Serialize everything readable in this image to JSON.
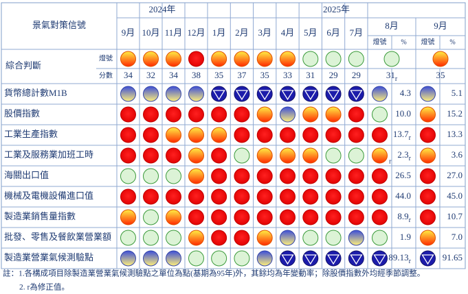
{
  "header": {
    "title": "景氣對策信號",
    "years": [
      "2024年",
      "2025年"
    ],
    "months": [
      "9月",
      "10月",
      "11月",
      "12月",
      "1月",
      "2月",
      "3月",
      "4月",
      "5月",
      "6月",
      "7月",
      "8月",
      "9月"
    ],
    "sub_labels": [
      "燈號",
      "%"
    ]
  },
  "composite": {
    "label": "綜合判斷",
    "signal_label": "燈號",
    "score_label": "分數",
    "signals": [
      "yellow-red",
      "yellow-red",
      "yellow-red",
      "red",
      "yellow-red",
      "yellow-red",
      "yellow-red",
      "yellow-red",
      "green",
      "green",
      "green",
      "green",
      "yellow-red"
    ],
    "scores": [
      {
        "text": "34"
      },
      {
        "text": "32"
      },
      {
        "text": "34"
      },
      {
        "text": "38"
      },
      {
        "text": "35"
      },
      {
        "text": "37"
      },
      {
        "text": "35"
      },
      {
        "text": "33"
      },
      {
        "text": "31"
      },
      {
        "text": "29"
      },
      {
        "text": "29"
      },
      {
        "text": "31",
        "note": "r"
      },
      {
        "text": "35"
      }
    ]
  },
  "rows": [
    {
      "label": "貨幣總計數M1B",
      "signals": [
        "yellow-blue",
        "yellow-blue",
        "yellow-blue",
        "yellow-blue",
        "blue",
        "blue",
        "blue",
        "blue",
        "blue",
        "blue",
        "blue",
        "yellow-blue",
        "yellow-blue"
      ],
      "aug_pct": {
        "text": "4.3"
      },
      "sep_pct": {
        "text": "5.1"
      }
    },
    {
      "label": "股價指數",
      "signals": [
        "red",
        "red",
        "red",
        "red",
        "red",
        "red",
        "yellow-red",
        "yellow-blue",
        "yellow-red",
        "yellow-red",
        "red",
        "green",
        "yellow-red"
      ],
      "aug_pct": {
        "text": "10.0"
      },
      "sep_pct": {
        "text": "15.2"
      }
    },
    {
      "label": "工業生產指數",
      "signals": [
        "red",
        "red",
        "yellow-red",
        "yellow-red",
        "yellow-red",
        "red",
        "red",
        "red",
        "red",
        "red",
        "red",
        "red",
        "red"
      ],
      "aug_pct": {
        "text": "13.7",
        "note": "r"
      },
      "sep_pct": {
        "text": "13.3"
      }
    },
    {
      "label": "工業及服務業加班工時",
      "signals": [
        "red",
        "red",
        "red",
        "yellow-red",
        "red",
        "green",
        "yellow-red",
        "yellow-red",
        "yellow-red",
        "green",
        "green",
        "yellow-red",
        "yellow-red"
      ],
      "aug_signal_note": "r",
      "aug_pct": {
        "text": "2.3",
        "note": "r"
      },
      "sep_pct": {
        "text": "3.6"
      }
    },
    {
      "label": "海關出口值",
      "signals": [
        "green",
        "green",
        "green",
        "yellow-red",
        "red",
        "red",
        "red",
        "red",
        "red",
        "red",
        "red",
        "red",
        "red"
      ],
      "aug_pct": {
        "text": "26.5"
      },
      "sep_pct": {
        "text": "27.0"
      }
    },
    {
      "label": "機械及電機設備進口值",
      "signals": [
        "red",
        "red",
        "red",
        "red",
        "red",
        "red",
        "red",
        "red",
        "red",
        "red",
        "red",
        "red",
        "red"
      ],
      "aug_pct": {
        "text": "44.0"
      },
      "sep_pct": {
        "text": "45.0"
      }
    },
    {
      "label": "製造業銷售量指數",
      "signals": [
        "yellow-red",
        "green",
        "yellow-red",
        "red",
        "red",
        "red",
        "red",
        "red",
        "red",
        "red",
        "red",
        "red",
        "red"
      ],
      "aug_pct": {
        "text": "8.9",
        "note": "r"
      },
      "sep_pct": {
        "text": "10.7"
      }
    },
    {
      "label": "批發、零售及餐飲業營業額",
      "signals": [
        "green",
        "green",
        "green",
        "yellow-red",
        "red",
        "red",
        "yellow-red",
        "yellow-blue",
        "green",
        "green",
        "yellow-blue",
        "green",
        "yellow-red"
      ],
      "aug_pct": {
        "text": "1.9"
      },
      "sep_pct": {
        "text": "7.0"
      }
    },
    {
      "label": "製造業營業氣候測驗點",
      "signals": [
        "yellow-blue",
        "yellow-blue",
        "yellow-blue",
        "green",
        "green",
        "green",
        "yellow-blue",
        "blue",
        "blue",
        "blue",
        "blue",
        "blue",
        "blue"
      ],
      "aug_pct": {
        "text": "89.13",
        "note": "r"
      },
      "sep_pct": {
        "text": "91.65"
      }
    }
  ],
  "notes": [
    "註：1.各構成項目除製造業營業氣候測驗點之單位為點(基期為95年)外，其餘均為年變動率；除股價指數外均經季節調整。",
    "2. r為修正值。"
  ]
}
